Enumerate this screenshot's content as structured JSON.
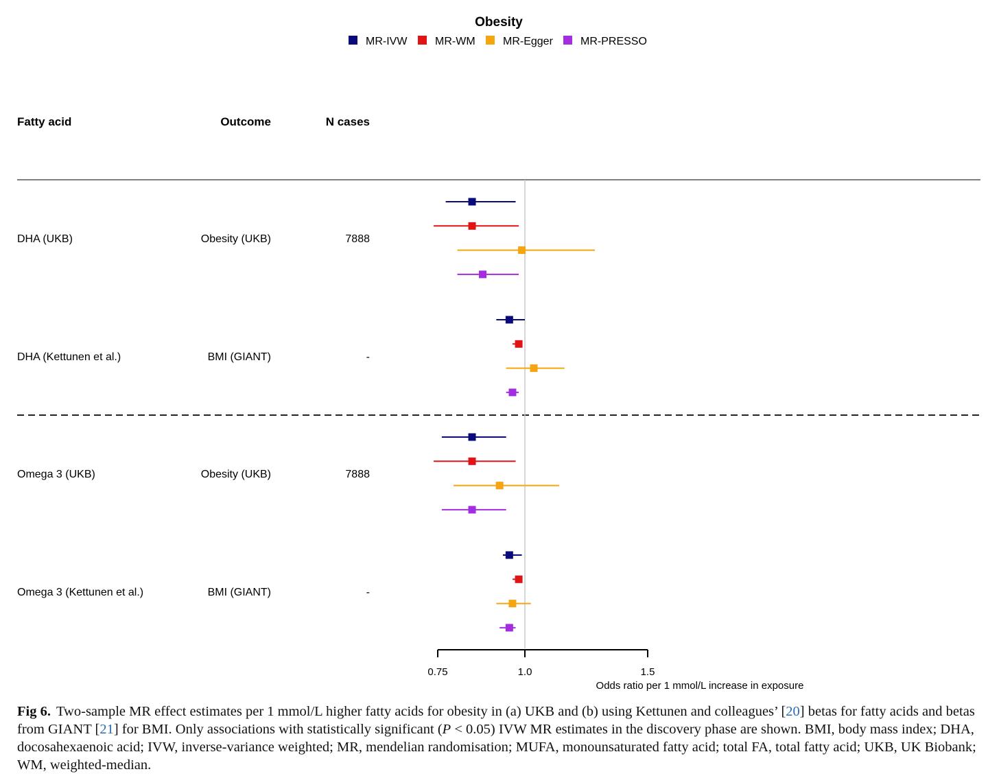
{
  "chart_data": {
    "type": "forest",
    "title": "Obesity",
    "legend": {
      "position": "top-center",
      "items": [
        {
          "name": "MR-IVW",
          "color": "#0a0a7a"
        },
        {
          "name": "MR-WM",
          "color": "#e01414"
        },
        {
          "name": "MR-Egger",
          "color": "#f5a511"
        },
        {
          "name": "MR-PRESSO",
          "color": "#a32ee0"
        }
      ]
    },
    "columns": {
      "fatty_acid": "Fatty acid",
      "outcome": "Outcome",
      "n_cases": "N cases"
    },
    "xlabel": "Odds ratio per 1 mmol/L increase in exposure",
    "xlim": [
      0.75,
      1.5
    ],
    "ticks": [
      "0.75",
      "1.0",
      "1.5"
    ],
    "ref_line": 1.0,
    "rows": [
      {
        "fatty_acid": "DHA (UKB)",
        "outcome": "Obesity (UKB)",
        "n_cases": "7888",
        "estimates": [
          {
            "method": "MR-IVW",
            "or": 0.84,
            "lo": 0.77,
            "hi": 0.97
          },
          {
            "method": "MR-WM",
            "or": 0.84,
            "lo": 0.74,
            "hi": 0.98
          },
          {
            "method": "MR-Egger",
            "or": 0.99,
            "lo": 0.8,
            "hi": 1.26
          },
          {
            "method": "MR-PRESSO",
            "or": 0.87,
            "lo": 0.8,
            "hi": 0.98
          }
        ]
      },
      {
        "fatty_acid": "DHA (Kettunen et al.)",
        "outcome": "BMI (GIANT)",
        "n_cases": "-",
        "estimates": [
          {
            "method": "MR-IVW",
            "or": 0.95,
            "lo": 0.91,
            "hi": 1.0
          },
          {
            "method": "MR-WM",
            "or": 0.98,
            "lo": 0.96,
            "hi": 0.99
          },
          {
            "method": "MR-Egger",
            "or": 1.03,
            "lo": 0.94,
            "hi": 1.14
          },
          {
            "method": "MR-PRESSO",
            "or": 0.96,
            "lo": 0.94,
            "hi": 0.98
          }
        ]
      },
      {
        "fatty_acid": "Omega 3 (UKB)",
        "outcome": "Obesity (UKB)",
        "n_cases": "7888",
        "estimates": [
          {
            "method": "MR-IVW",
            "or": 0.84,
            "lo": 0.76,
            "hi": 0.94
          },
          {
            "method": "MR-WM",
            "or": 0.84,
            "lo": 0.74,
            "hi": 0.97
          },
          {
            "method": "MR-Egger",
            "or": 0.92,
            "lo": 0.79,
            "hi": 1.12
          },
          {
            "method": "MR-PRESSO",
            "or": 0.84,
            "lo": 0.76,
            "hi": 0.94
          }
        ]
      },
      {
        "fatty_acid": "Omega 3 (Kettunen et al.)",
        "outcome": "BMI (GIANT)",
        "n_cases": "-",
        "estimates": [
          {
            "method": "MR-IVW",
            "or": 0.95,
            "lo": 0.93,
            "hi": 0.99
          },
          {
            "method": "MR-WM",
            "or": 0.98,
            "lo": 0.96,
            "hi": 0.99
          },
          {
            "method": "MR-Egger",
            "or": 0.96,
            "lo": 0.91,
            "hi": 1.02
          },
          {
            "method": "MR-PRESSO",
            "or": 0.95,
            "lo": 0.92,
            "hi": 0.97
          }
        ]
      }
    ]
  },
  "caption": {
    "label": "Fig 6.",
    "t1": "Two-sample MR effect estimates per 1 mmol/L higher fatty acids for obesity in (a) UKB and (b) using Kettunen and colleagues’ [",
    "ref1": "20",
    "t2": "] betas for fatty acids and betas from GIANT [",
    "ref2": "21",
    "t3": "] for BMI. Only associations with statistically significant (",
    "p": "P",
    "t4": " < 0.05) IVW MR estimates in the discovery phase are shown. BMI, body mass index; DHA, docosahexaenoic acid; IVW, inverse-variance weighted; MR, mendelian randomisation; MUFA, monounsaturated fatty acid; total FA, total fatty acid; UKB, UK Biobank; WM, weighted-median."
  }
}
